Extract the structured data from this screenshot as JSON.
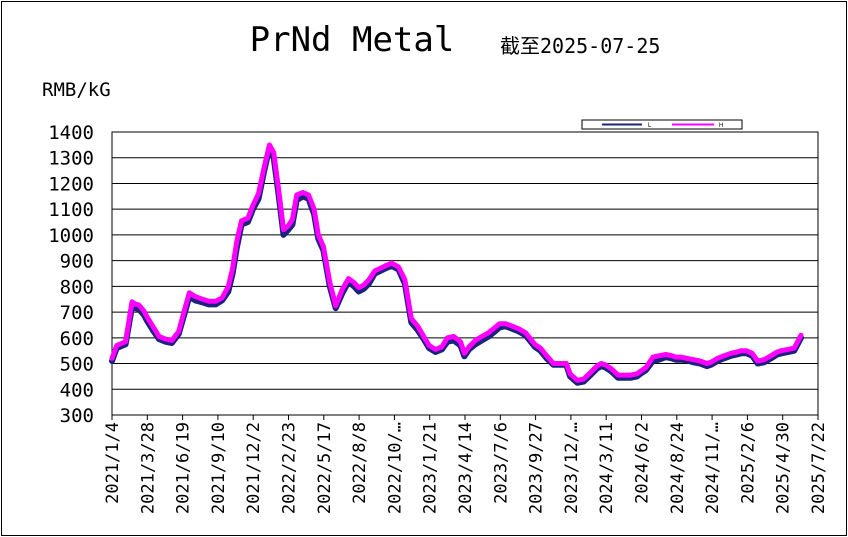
{
  "chart_data": {
    "type": "line",
    "title": "PrNd Metal",
    "subtitle": "截至2025-07-25",
    "ylabel": "RMB/kG",
    "xlabel": "",
    "ylim": [
      300,
      1400
    ],
    "yticks": [
      1400,
      1300,
      1200,
      1100,
      1000,
      900,
      800,
      700,
      600,
      500,
      400,
      300
    ],
    "xticks": [
      "2021/1/4",
      "2021/3/28",
      "2021/6/19",
      "2021/9/10",
      "2021/12/2",
      "2022/2/23",
      "2022/5/17",
      "2022/8/8",
      "2022/10/…",
      "2023/1/21",
      "2023/4/14",
      "2023/7/6",
      "2023/9/27",
      "2023/12/…",
      "2024/3/11",
      "2024/6/2",
      "2024/8/24",
      "2024/11/…",
      "2025/2/6",
      "2025/4/30",
      "2025/7/22"
    ],
    "grid": "horizontal",
    "legend_position": "top-right",
    "colors": {
      "L": "#1a237e",
      "H": "#ff00ff"
    },
    "x_dates": [
      "2021-01-04",
      "2021-01-15",
      "2021-02-05",
      "2021-02-20",
      "2021-03-01",
      "2021-03-08",
      "2021-03-20",
      "2021-03-28",
      "2021-04-10",
      "2021-04-25",
      "2021-05-10",
      "2021-05-25",
      "2021-06-10",
      "2021-06-25",
      "2021-07-05",
      "2021-07-20",
      "2021-08-05",
      "2021-08-20",
      "2021-09-05",
      "2021-09-20",
      "2021-10-05",
      "2021-10-15",
      "2021-10-25",
      "2021-11-05",
      "2021-11-20",
      "2021-12-02",
      "2021-12-15",
      "2021-12-28",
      "2022-01-10",
      "2022-01-20",
      "2022-02-01",
      "2022-02-12",
      "2022-02-23",
      "2022-03-05",
      "2022-03-15",
      "2022-03-30",
      "2022-04-12",
      "2022-04-25",
      "2022-05-05",
      "2022-05-17",
      "2022-06-01",
      "2022-06-15",
      "2022-07-01",
      "2022-07-15",
      "2022-07-28",
      "2022-08-08",
      "2022-08-20",
      "2022-09-01",
      "2022-09-15",
      "2022-09-28",
      "2022-10-10",
      "2022-10-25",
      "2022-11-10",
      "2022-11-25",
      "2022-12-10",
      "2022-12-25",
      "2023-01-10",
      "2023-01-21",
      "2023-02-05",
      "2023-02-20",
      "2023-03-05",
      "2023-03-20",
      "2023-04-05",
      "2023-04-14",
      "2023-04-25",
      "2023-05-10",
      "2023-05-25",
      "2023-06-10",
      "2023-06-25",
      "2023-07-06",
      "2023-07-20",
      "2023-08-05",
      "2023-08-20",
      "2023-09-05",
      "2023-09-15",
      "2023-09-27",
      "2023-10-10",
      "2023-10-25",
      "2023-11-10",
      "2023-11-25",
      "2023-12-10",
      "2023-12-19",
      "2024-01-05",
      "2024-01-20",
      "2024-02-05",
      "2024-02-20",
      "2024-03-01",
      "2024-03-11",
      "2024-03-25",
      "2024-04-10",
      "2024-04-25",
      "2024-05-10",
      "2024-05-25",
      "2024-06-02",
      "2024-06-15",
      "2024-07-01",
      "2024-07-15",
      "2024-08-01",
      "2024-08-15",
      "2024-08-24",
      "2024-09-05",
      "2024-09-20",
      "2024-10-05",
      "2024-10-20",
      "2024-11-05",
      "2024-11-15",
      "2024-11-30",
      "2024-12-15",
      "2025-01-01",
      "2025-01-15",
      "2025-01-25",
      "2025-02-06",
      "2025-02-20",
      "2025-03-05",
      "2025-03-20",
      "2025-04-05",
      "2025-04-20",
      "2025-04-30",
      "2025-05-15",
      "2025-05-30",
      "2025-06-15",
      "2025-06-30",
      "2025-07-10",
      "2025-07-22",
      "2025-07-25"
    ],
    "series": [
      {
        "name": "L",
        "values": [
          510,
          560,
          575,
          720,
          715,
          712,
          690,
          665,
          630,
          595,
          585,
          580,
          615,
          700,
          760,
          745,
          738,
          730,
          730,
          745,
          780,
          850,
          950,
          1040,
          1050,
          1100,
          1140,
          1245,
          1340,
          1300,
          1150,
          1000,
          1020,
          1040,
          1135,
          1150,
          1140,
          1080,
          985,
          940,
          800,
          715,
          775,
          818,
          800,
          780,
          790,
          810,
          850,
          860,
          870,
          880,
          865,
          810,
          660,
          630,
          590,
          560,
          545,
          555,
          585,
          590,
          570,
          528,
          555,
          575,
          590,
          605,
          625,
          640,
          645,
          635,
          625,
          610,
          590,
          565,
          550,
          520,
          495,
          495,
          495,
          450,
          425,
          430,
          455,
          480,
          490,
          485,
          470,
          445,
          445,
          445,
          450,
          460,
          475,
          510,
          515,
          525,
          520,
          515,
          515,
          512,
          505,
          500,
          490,
          495,
          510,
          520,
          530,
          535,
          540,
          540,
          530,
          500,
          505,
          520,
          535,
          540,
          545,
          550,
          600
        ]
      },
      {
        "name": "H",
        "values": [
          520,
          570,
          585,
          740,
          730,
          728,
          705,
          680,
          645,
          605,
          595,
          590,
          625,
          715,
          775,
          760,
          750,
          742,
          742,
          755,
          800,
          870,
          975,
          1055,
          1065,
          1115,
          1160,
          1260,
          1350,
          1320,
          1170,
          1020,
          1035,
          1060,
          1155,
          1165,
          1155,
          1100,
          1000,
          955,
          815,
          725,
          790,
          830,
          815,
          795,
          805,
          825,
          860,
          870,
          880,
          890,
          875,
          825,
          675,
          645,
          600,
          570,
          555,
          565,
          600,
          605,
          585,
          540,
          565,
          590,
          605,
          620,
          640,
          655,
          655,
          645,
          635,
          620,
          600,
          575,
          560,
          530,
          500,
          500,
          500,
          460,
          435,
          440,
          465,
          490,
          500,
          495,
          480,
          455,
          455,
          455,
          460,
          470,
          485,
          525,
          530,
          535,
          530,
          525,
          525,
          520,
          515,
          510,
          500,
          505,
          520,
          530,
          540,
          545,
          550,
          550,
          540,
          510,
          515,
          530,
          545,
          550,
          555,
          560,
          610
        ]
      }
    ]
  }
}
